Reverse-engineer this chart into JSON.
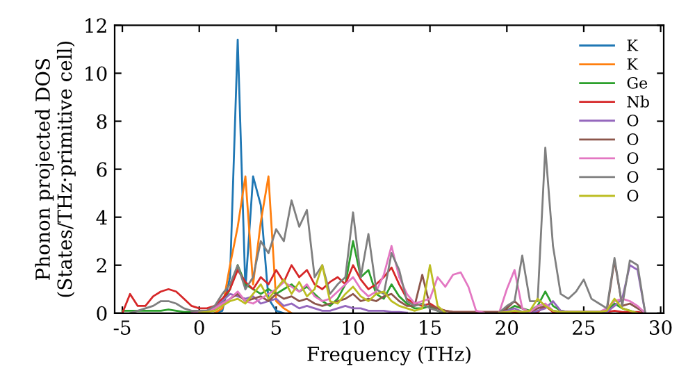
{
  "chart_data": {
    "type": "line",
    "xlabel": "Frequency (THz)",
    "ylabel": "Phonon projected DOS\n(States/THz·primitive cell)",
    "x": [
      -5,
      -4.5,
      -4,
      -3.5,
      -3,
      -2.5,
      -2,
      -1.5,
      -1,
      -0.5,
      0,
      0.5,
      1,
      1.5,
      2,
      2.5,
      3,
      3.5,
      4,
      4.5,
      5,
      5.5,
      6,
      6.5,
      7,
      7.5,
      8,
      8.5,
      9,
      9.5,
      10,
      10.5,
      11,
      11.5,
      12,
      12.5,
      13,
      13.5,
      14,
      14.5,
      15,
      15.5,
      16,
      16.5,
      17,
      17.5,
      18,
      18.5,
      19,
      19.5,
      20,
      20.5,
      21,
      21.5,
      22,
      22.5,
      23,
      23.5,
      24,
      24.5,
      25,
      25.5,
      26,
      26.5,
      27,
      27.5,
      28,
      28.5,
      29
    ],
    "xlim": [
      -5.5,
      30.2
    ],
    "xticks": [
      -5,
      0,
      5,
      10,
      15,
      20,
      25,
      30
    ],
    "ylim": [
      0,
      12
    ],
    "yticks": [
      0,
      2,
      4,
      6,
      8,
      10,
      12
    ],
    "grid": false,
    "legend": "top right",
    "line_style": "solid",
    "marker": "none",
    "series": [
      {
        "name": "K",
        "color": "#1f77b4",
        "values": [
          null,
          null,
          null,
          null,
          null,
          null,
          null,
          null,
          null,
          null,
          null,
          null,
          0,
          0.1,
          1.5,
          11.4,
          1.0,
          5.7,
          4.5,
          0.6,
          0.1,
          0,
          null,
          null,
          null,
          null,
          null,
          null,
          null,
          null,
          null,
          null,
          null,
          null,
          null,
          null,
          null,
          null,
          null,
          null,
          null,
          null,
          null,
          null,
          null,
          null,
          null,
          null,
          null,
          null,
          null,
          null,
          null,
          null,
          null,
          null,
          null,
          null,
          null,
          null,
          null,
          null,
          null,
          null,
          null,
          null,
          null,
          null,
          null
        ]
      },
      {
        "name": "K",
        "color": "#ff7f0e",
        "values": [
          null,
          null,
          null,
          null,
          null,
          null,
          null,
          null,
          null,
          null,
          null,
          null,
          0,
          0.2,
          2.0,
          3.6,
          5.7,
          1.2,
          3.8,
          5.7,
          0.5,
          0.2,
          0,
          null,
          null,
          null,
          null,
          null,
          null,
          null,
          null,
          null,
          null,
          null,
          null,
          null,
          null,
          null,
          null,
          null,
          null,
          null,
          null,
          null,
          null,
          null,
          null,
          null,
          null,
          null,
          null,
          null,
          null,
          null,
          null,
          null,
          null,
          null,
          null,
          null,
          null,
          null,
          null,
          null,
          null,
          null,
          null,
          null,
          null
        ]
      },
      {
        "name": "Ge",
        "color": "#2ca02c",
        "values": [
          0.1,
          0.1,
          0.1,
          0.1,
          0.1,
          0.1,
          0.15,
          0.1,
          0.05,
          0.05,
          0.05,
          0.1,
          0.2,
          0.4,
          1.0,
          2.0,
          1.2,
          1.0,
          0.8,
          1.0,
          0.8,
          1.0,
          1.2,
          0.9,
          1.1,
          0.8,
          0.5,
          0.3,
          0.6,
          1.2,
          3.0,
          1.5,
          1.8,
          0.8,
          0.6,
          1.2,
          0.7,
          0.4,
          0.2,
          0.2,
          0.3,
          0.1,
          0,
          null,
          null,
          null,
          null,
          null,
          null,
          0,
          0.1,
          0.3,
          0.2,
          0.1,
          0.3,
          0.9,
          0.3,
          0.1,
          0.05,
          0.05,
          0.05,
          0.05,
          0.05,
          0.1,
          0.4,
          0.2,
          0.1,
          0,
          null
        ]
      },
      {
        "name": "Nb",
        "color": "#d62728",
        "values": [
          0,
          0.8,
          0.3,
          0.3,
          0.7,
          0.9,
          1.0,
          0.9,
          0.6,
          0.3,
          0.2,
          0.2,
          0.3,
          0.6,
          1.0,
          1.8,
          1.3,
          1.0,
          1.5,
          1.2,
          1.8,
          1.3,
          2.0,
          1.5,
          1.8,
          1.2,
          1.0,
          1.3,
          1.5,
          1.2,
          2.0,
          1.4,
          1.0,
          1.2,
          1.5,
          1.9,
          1.2,
          0.6,
          0.4,
          0.3,
          0.4,
          0.2,
          0.1,
          0.05,
          0.05,
          0.05,
          0.05,
          0.05,
          0.05,
          0.05,
          0.1,
          0.05,
          0.05,
          0.05,
          0.05,
          0.3,
          0.05,
          0.05,
          0.05,
          0.05,
          0.05,
          0.05,
          0.05,
          0.05,
          0.1,
          0.05,
          0.05,
          0.05,
          0
        ]
      },
      {
        "name": "O",
        "color": "#9467bd",
        "values": [
          null,
          null,
          null,
          null,
          null,
          null,
          null,
          null,
          null,
          0,
          0.05,
          0.1,
          0.2,
          0.5,
          0.8,
          0.7,
          0.6,
          0.7,
          0.4,
          0.5,
          0.6,
          0.3,
          0.4,
          0.2,
          0.3,
          0.2,
          0.1,
          0.1,
          0.2,
          0.3,
          0.2,
          0.2,
          0.1,
          0.1,
          0.1,
          0.05,
          0.05,
          0.02,
          null,
          null,
          null,
          null,
          null,
          null,
          null,
          null,
          null,
          null,
          null,
          0.02,
          0.1,
          0.2,
          0.05,
          0,
          0.1,
          0.2,
          0.5,
          0.1,
          0.05,
          0.05,
          0.05,
          0.05,
          0.05,
          0.05,
          0.3,
          0.6,
          2.0,
          1.8,
          0
        ]
      },
      {
        "name": "O",
        "color": "#8c564b",
        "values": [
          null,
          null,
          null,
          null,
          null,
          null,
          null,
          null,
          null,
          0.02,
          0.05,
          0.1,
          0.2,
          0.4,
          0.6,
          0.8,
          0.5,
          0.6,
          0.7,
          0.5,
          0.8,
          0.6,
          0.7,
          0.5,
          0.6,
          0.4,
          0.3,
          0.4,
          0.5,
          0.6,
          0.8,
          0.5,
          0.6,
          0.5,
          0.7,
          0.8,
          0.5,
          0.3,
          0.3,
          1.6,
          0.3,
          0.2,
          0.1,
          0.05,
          0.05,
          0.05,
          0.05,
          0.05,
          0.05,
          0.05,
          0.2,
          0.5,
          0.2,
          0.05,
          0.2,
          0.3,
          0.1,
          0.05,
          0.05,
          0.05,
          0.05,
          0.05,
          0.05,
          0.1,
          2.2,
          0.3,
          0.4,
          0.2,
          0
        ]
      },
      {
        "name": "O",
        "color": "#e377c2",
        "values": [
          null,
          null,
          null,
          null,
          null,
          null,
          null,
          null,
          null,
          0,
          0.05,
          0.1,
          0.2,
          0.4,
          0.6,
          0.9,
          0.5,
          0.4,
          0.6,
          0.8,
          1.0,
          1.3,
          1.1,
          0.9,
          1.2,
          0.7,
          0.5,
          0.6,
          0.9,
          1.2,
          1.5,
          1.0,
          0.7,
          0.9,
          1.6,
          2.8,
          1.5,
          0.8,
          0.4,
          0.5,
          0.6,
          1.5,
          1.1,
          1.6,
          1.7,
          1.1,
          0.1,
          0.02,
          null,
          0.02,
          1.0,
          1.8,
          0.2,
          0.05,
          0.3,
          0.4,
          0.1,
          0.05,
          0.05,
          0.05,
          0.05,
          0.05,
          0.05,
          0.2,
          0.5,
          0.6,
          0.5,
          0.3,
          0
        ]
      },
      {
        "name": "O",
        "color": "#7f7f7f",
        "values": [
          null,
          0,
          0.1,
          0.2,
          0.3,
          0.5,
          0.5,
          0.4,
          0.2,
          0.1,
          0.1,
          0.1,
          0.3,
          0.8,
          1.2,
          2.0,
          1.0,
          1.5,
          3.0,
          2.5,
          3.5,
          3.0,
          4.7,
          3.6,
          4.3,
          1.5,
          2.0,
          0.8,
          1.2,
          1.5,
          4.2,
          1.5,
          3.3,
          1.0,
          0.8,
          2.5,
          1.8,
          0.5,
          0.3,
          0.4,
          0.2,
          0.1,
          0.02,
          null,
          null,
          null,
          null,
          null,
          null,
          0.02,
          0.3,
          0.5,
          2.4,
          0.5,
          0.5,
          6.9,
          2.8,
          0.8,
          0.6,
          0.9,
          1.4,
          0.6,
          0.4,
          0.2,
          2.3,
          0.3,
          2.2,
          2.0,
          0
        ]
      },
      {
        "name": "O",
        "color": "#bcbd22",
        "values": [
          null,
          null,
          null,
          null,
          null,
          null,
          null,
          null,
          null,
          null,
          0.02,
          0.05,
          0.1,
          0.3,
          0.5,
          0.6,
          0.4,
          0.8,
          1.2,
          0.6,
          1.0,
          1.4,
          0.8,
          1.3,
          0.7,
          1.0,
          2.0,
          0.5,
          0.4,
          0.8,
          1.1,
          0.7,
          0.5,
          0.8,
          0.9,
          0.5,
          0.3,
          0.2,
          0.1,
          0.2,
          2.0,
          0.3,
          0.02,
          null,
          null,
          null,
          null,
          null,
          null,
          0.02,
          0.05,
          0.1,
          0.05,
          0.1,
          0.6,
          0.3,
          0.1,
          0.05,
          0.05,
          0.05,
          0.05,
          0.05,
          0.05,
          0.1,
          0.6,
          0.2,
          0.1,
          0,
          null
        ]
      }
    ]
  }
}
